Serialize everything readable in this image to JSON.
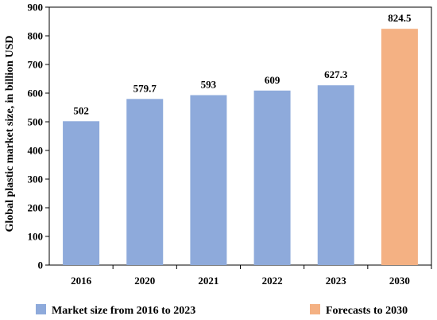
{
  "chart_data": {
    "type": "bar",
    "categories": [
      "2016",
      "2020",
      "2021",
      "2022",
      "2023",
      "2030"
    ],
    "values": [
      502,
      579.7,
      593,
      609,
      627.3,
      824.5
    ],
    "data_labels": [
      "502",
      "579.7",
      "593",
      "609",
      "627.3",
      "824.5"
    ],
    "bar_groups": [
      "historical",
      "historical",
      "historical",
      "historical",
      "historical",
      "forecast"
    ],
    "ylabel": "Global plastic market size, in billion USD",
    "xlabel": "",
    "ylim": [
      0,
      900
    ],
    "yticks": [
      0,
      100,
      200,
      300,
      400,
      500,
      600,
      700,
      800,
      900
    ],
    "grid": false,
    "legend_position": "bottom",
    "legend": [
      {
        "key": "historical",
        "label": "Market size from 2016 to 2023",
        "color": "#8eaadb"
      },
      {
        "key": "forecast",
        "label": "Forecasts to 2030",
        "color": "#f4b183"
      }
    ],
    "colors": {
      "historical": "#8eaadb",
      "forecast": "#f4b183",
      "axis": "#000000"
    }
  }
}
